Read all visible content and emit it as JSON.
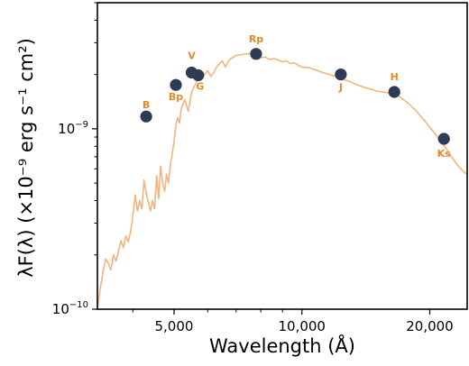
{
  "chart_data": {
    "type": "scatter",
    "xscale": "log",
    "yscale": "log",
    "xlim": [
      3300,
      24500
    ],
    "ylim": [
      1e-10,
      5e-09
    ],
    "xlabel": "Wavelength (Å)",
    "ylabel": "λF(λ) (×10⁻⁹ erg s⁻¹ cm²)",
    "grid": false,
    "colors": {
      "model": "#f5b47e",
      "points": "#2d3b54",
      "labels": "#e58a2b"
    },
    "x_ticks": [
      {
        "value": 5000,
        "label": "5,000"
      },
      {
        "value": 10000,
        "label": "10,000"
      },
      {
        "value": 20000,
        "label": "20,000"
      }
    ],
    "y_ticks": [
      {
        "value": 1e-10,
        "label": "10",
        "exp": "−10"
      },
      {
        "value": 1e-09,
        "label": "10",
        "exp": "−9"
      }
    ],
    "series": [
      {
        "type": "line",
        "points": [
          [
            3300,
            1e-10
          ],
          [
            3350,
            1.3e-10
          ],
          [
            3400,
            1.6e-10
          ],
          [
            3450,
            1.9e-10
          ],
          [
            3500,
            1.8e-10
          ],
          [
            3550,
            1.65e-10
          ],
          [
            3600,
            2e-10
          ],
          [
            3650,
            1.85e-10
          ],
          [
            3700,
            2.1e-10
          ],
          [
            3750,
            2.4e-10
          ],
          [
            3800,
            2.2e-10
          ],
          [
            3850,
            2.55e-10
          ],
          [
            3900,
            2.35e-10
          ],
          [
            3950,
            2.7e-10
          ],
          [
            4000,
            3.3e-10
          ],
          [
            4050,
            4.3e-10
          ],
          [
            4100,
            3.5e-10
          ],
          [
            4150,
            4e-10
          ],
          [
            4200,
            3.6e-10
          ],
          [
            4250,
            5.2e-10
          ],
          [
            4300,
            4.4e-10
          ],
          [
            4350,
            3.9e-10
          ],
          [
            4400,
            3.5e-10
          ],
          [
            4450,
            4e-10
          ],
          [
            4500,
            3.6e-10
          ],
          [
            4550,
            5.5e-10
          ],
          [
            4600,
            4.1e-10
          ],
          [
            4650,
            6.2e-10
          ],
          [
            4700,
            5e-10
          ],
          [
            4750,
            4.5e-10
          ],
          [
            4800,
            5.6e-10
          ],
          [
            4850,
            5e-10
          ],
          [
            4900,
            6.3e-10
          ],
          [
            4950,
            7.2e-10
          ],
          [
            5000,
            8.6e-10
          ],
          [
            5050,
            1.05e-09
          ],
          [
            5100,
            1.15e-09
          ],
          [
            5150,
            1.08e-09
          ],
          [
            5200,
            1.3e-09
          ],
          [
            5300,
            1.45e-09
          ],
          [
            5400,
            1.25e-09
          ],
          [
            5500,
            1.6e-09
          ],
          [
            5600,
            1.75e-09
          ],
          [
            5700,
            1.9e-09
          ],
          [
            5800,
            1.98e-09
          ],
          [
            5900,
            2e-09
          ],
          [
            6000,
            2.1e-09
          ],
          [
            6100,
            1.95e-09
          ],
          [
            6200,
            2.05e-09
          ],
          [
            6300,
            2.2e-09
          ],
          [
            6400,
            2.3e-09
          ],
          [
            6500,
            2.38e-09
          ],
          [
            6600,
            2.2e-09
          ],
          [
            6700,
            2.35e-09
          ],
          [
            6800,
            2.45e-09
          ],
          [
            7000,
            2.55e-09
          ],
          [
            7200,
            2.58e-09
          ],
          [
            7400,
            2.6e-09
          ],
          [
            7600,
            2.62e-09
          ],
          [
            7800,
            2.55e-09
          ],
          [
            8000,
            2.48e-09
          ],
          [
            8200,
            2.5e-09
          ],
          [
            8400,
            2.42e-09
          ],
          [
            8600,
            2.45e-09
          ],
          [
            8800,
            2.4e-09
          ],
          [
            9000,
            2.35e-09
          ],
          [
            9200,
            2.38e-09
          ],
          [
            9400,
            2.3e-09
          ],
          [
            9600,
            2.32e-09
          ],
          [
            9800,
            2.25e-09
          ],
          [
            10000,
            2.2e-09
          ],
          [
            10400,
            2.18e-09
          ],
          [
            10800,
            2.12e-09
          ],
          [
            11200,
            2.05e-09
          ],
          [
            11600,
            2e-09
          ],
          [
            12000,
            1.95e-09
          ],
          [
            12500,
            1.88e-09
          ],
          [
            13000,
            1.82e-09
          ],
          [
            13500,
            1.75e-09
          ],
          [
            14000,
            1.7e-09
          ],
          [
            14500,
            1.66e-09
          ],
          [
            15000,
            1.62e-09
          ],
          [
            15500,
            1.6e-09
          ],
          [
            16000,
            1.58e-09
          ],
          [
            16500,
            1.55e-09
          ],
          [
            17000,
            1.5e-09
          ],
          [
            17500,
            1.43e-09
          ],
          [
            18000,
            1.35e-09
          ],
          [
            18500,
            1.27e-09
          ],
          [
            19000,
            1.18e-09
          ],
          [
            19500,
            1.1e-09
          ],
          [
            20000,
            1.02e-09
          ],
          [
            20500,
            9.5e-10
          ],
          [
            21000,
            8.8e-10
          ],
          [
            21500,
            8.2e-10
          ],
          [
            22000,
            7.6e-10
          ],
          [
            22500,
            7e-10
          ],
          [
            23000,
            6.5e-10
          ],
          [
            23500,
            6.1e-10
          ],
          [
            24000,
            5.8e-10
          ],
          [
            24500,
            5.6e-10
          ]
        ]
      },
      {
        "type": "scatter",
        "points": [
          {
            "band": "B",
            "x": 4300,
            "y": 1.17e-09
          },
          {
            "band": "Bp",
            "x": 5050,
            "y": 1.75e-09
          },
          {
            "band": "V",
            "x": 5500,
            "y": 2.05e-09
          },
          {
            "band": "G",
            "x": 5700,
            "y": 1.98e-09
          },
          {
            "band": "Rp",
            "x": 7800,
            "y": 2.6e-09
          },
          {
            "band": "J",
            "x": 12350,
            "y": 2e-09
          },
          {
            "band": "H",
            "x": 16500,
            "y": 1.6e-09
          },
          {
            "band": "Ks",
            "x": 21600,
            "y": 8.8e-10
          }
        ]
      }
    ]
  }
}
